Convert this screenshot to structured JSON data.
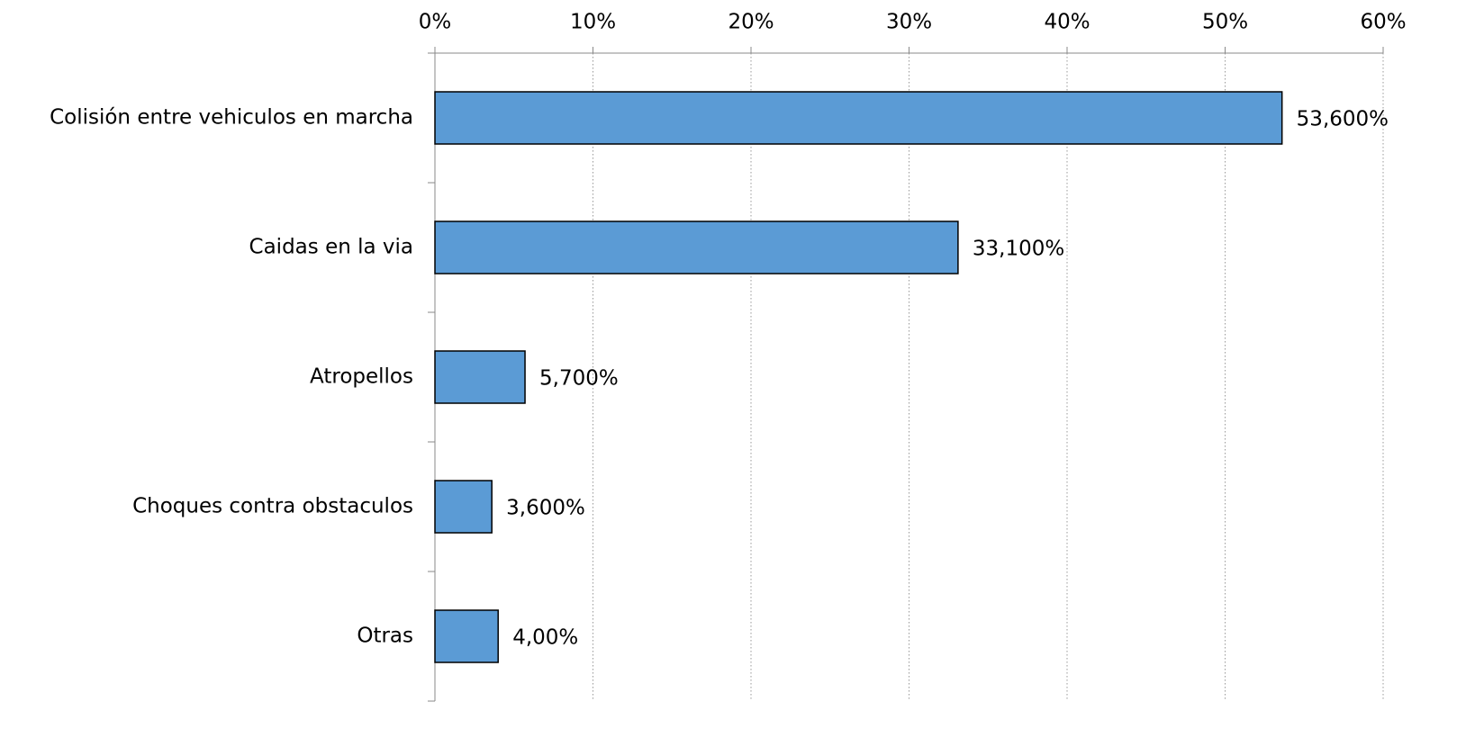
{
  "chart_data": {
    "type": "bar",
    "orientation": "horizontal",
    "categories": [
      "Colisión entre vehiculos en marcha",
      "Caidas en la via",
      "Atropellos",
      "Choques contra obstaculos",
      "Otras"
    ],
    "values": [
      53.6,
      33.1,
      5.7,
      3.6,
      4.0
    ],
    "value_labels": [
      "53,600%",
      "33,100%",
      "5,700%",
      "3,600%",
      "4,00%"
    ],
    "color": "#5b9bd5",
    "xlim": [
      0,
      60
    ],
    "xticks": [
      {
        "value": 0,
        "label": "0%"
      },
      {
        "value": 10,
        "label": "10%"
      },
      {
        "value": 20,
        "label": "20%"
      },
      {
        "value": 30,
        "label": "30%"
      },
      {
        "value": 40,
        "label": "40%"
      },
      {
        "value": 50,
        "label": "50%"
      },
      {
        "value": 60,
        "label": "60%"
      }
    ],
    "grid": true
  }
}
